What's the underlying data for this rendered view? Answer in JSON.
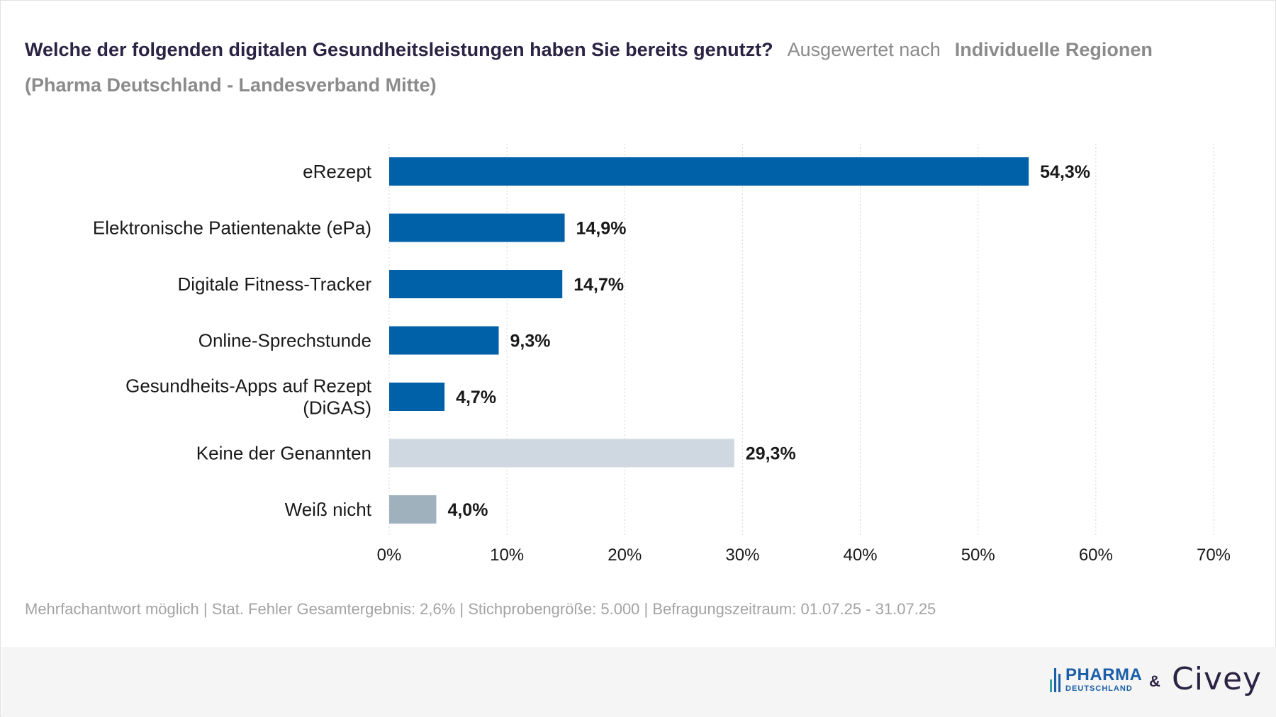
{
  "title": {
    "question": "Welche der folgenden digitalen Gesundheitsleistungen haben Sie bereits genutzt?",
    "evaluated_by": "Ausgewertet nach",
    "region": "Individuelle Regionen",
    "subtitle": "(Pharma Deutschland - Landesverband Mitte)"
  },
  "chart_data": {
    "type": "bar",
    "orientation": "horizontal",
    "categories": [
      "eRezept",
      "Elektronische Patientenakte (ePa)",
      "Digitale Fitness-Tracker",
      "Online-Sprechstunde",
      "Gesundheits-Apps auf Rezept (DiGAS)",
      "Keine der Genannten",
      "Weiß nicht"
    ],
    "category_lines": [
      [
        "eRezept"
      ],
      [
        "Elektronische Patientenakte (ePa)"
      ],
      [
        "Digitale Fitness-Tracker"
      ],
      [
        "Online-Sprechstunde"
      ],
      [
        "Gesundheits-Apps auf Rezept",
        "(DiGAS)"
      ],
      [
        "Keine der Genannten"
      ],
      [
        "Weiß nicht"
      ]
    ],
    "values": [
      54.3,
      14.9,
      14.7,
      9.3,
      4.7,
      29.3,
      4.0
    ],
    "value_labels": [
      "54,3%",
      "14,9%",
      "14,7%",
      "9,3%",
      "4,7%",
      "29,3%",
      "4,0%"
    ],
    "bar_colors": [
      "#0060a8",
      "#0060a8",
      "#0060a8",
      "#0060a8",
      "#0060a8",
      "#cfd8e1",
      "#a0b1be"
    ],
    "xlim": [
      0,
      70
    ],
    "xticks": [
      0,
      10,
      20,
      30,
      40,
      50,
      60,
      70
    ],
    "xtick_labels": [
      "0%",
      "10%",
      "20%",
      "30%",
      "40%",
      "50%",
      "60%",
      "70%"
    ],
    "grid": "vertical dotted",
    "legend": "none"
  },
  "footnote": "Mehrfachantwort möglich | Stat. Fehler Gesamtergebnis: 2,6% | Stichprobengröße: 5.000 | Befragungszeitraum: 01.07.25 - 31.07.25",
  "logos": {
    "pharma_word": "PHARMA",
    "pharma_sub": "DEUTSCHLAND",
    "ampersand": "&",
    "civey": "Civey"
  },
  "colors": {
    "title": "#2b2343",
    "muted": "#8b8b8b",
    "text": "#1a1a1a",
    "bar_primary": "#0060a8",
    "bar_none": "#cfd8e1",
    "bar_unknown": "#a0b1be"
  }
}
